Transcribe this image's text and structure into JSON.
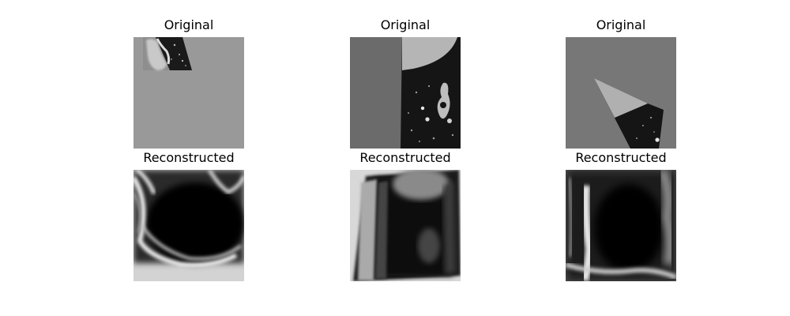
{
  "panels": [
    {
      "title": "Original"
    },
    {
      "title": "Original"
    },
    {
      "title": "Original"
    },
    {
      "title": "Reconstructed"
    },
    {
      "title": "Reconstructed"
    },
    {
      "title": "Reconstructed"
    }
  ]
}
